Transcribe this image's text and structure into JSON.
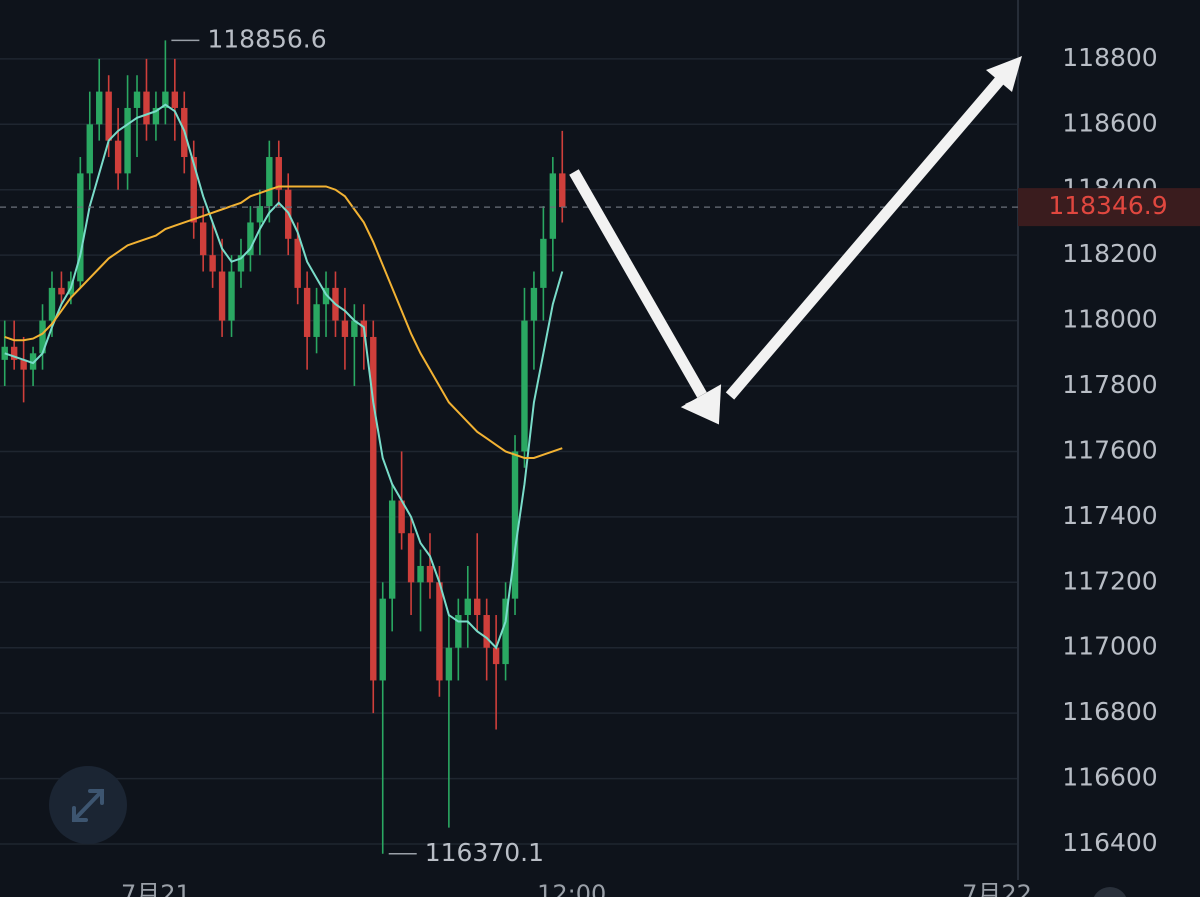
{
  "chart_data": {
    "type": "candlestick",
    "categories": [
      null,
      null,
      null,
      null,
      null,
      null,
      null,
      null,
      null,
      null,
      null,
      null,
      null,
      null,
      null,
      null,
      "7月21",
      null,
      null,
      null,
      null,
      null,
      null,
      null,
      null,
      null,
      null,
      null,
      null,
      null,
      null,
      null,
      null,
      null,
      null,
      null,
      null,
      null,
      null,
      null,
      null,
      null,
      null,
      null,
      null,
      null,
      null,
      null,
      null,
      null,
      null,
      null,
      null,
      null,
      null,
      null,
      null,
      null,
      null,
      null,
      "12:00",
      null,
      null,
      null,
      null,
      null,
      null,
      null,
      null,
      null,
      null,
      null,
      null,
      null,
      null,
      null,
      null,
      null,
      null,
      null,
      null,
      null,
      null,
      null,
      null,
      null,
      null,
      null,
      null,
      null,
      null,
      null,
      null,
      null,
      null,
      null,
      null,
      null,
      null,
      null,
      null,
      null,
      null,
      null,
      null,
      "7月22",
      null
    ],
    "open": [
      117880,
      117920,
      117880,
      117850,
      117900,
      118000,
      118100,
      118080,
      118120,
      118450,
      118600,
      118700,
      118550,
      118450,
      118650,
      118700,
      118600,
      118650,
      118700,
      118650,
      118500,
      118300,
      118200,
      118150,
      118000,
      118150,
      118200,
      118300,
      118350,
      118500,
      118400,
      118250,
      118100,
      117950,
      118050,
      118100,
      118000,
      117950,
      118000,
      117950,
      116900,
      117150,
      117450,
      117350,
      117200,
      117250,
      117200,
      116900,
      117000,
      117100,
      117150,
      117100,
      117000,
      116950,
      117150,
      117600,
      118000,
      118100,
      118250,
      118450,
      null,
      null,
      null,
      null,
      null,
      null,
      null,
      null,
      null,
      null,
      null,
      null,
      null,
      null,
      null,
      null,
      null,
      null,
      null,
      null,
      null,
      null,
      null,
      null,
      null,
      null,
      null,
      null,
      null,
      null,
      null,
      null,
      null,
      null,
      null,
      null,
      null,
      null,
      null,
      null,
      null,
      null,
      null,
      null,
      null,
      null,
      null
    ],
    "high": [
      118000,
      118000,
      117950,
      117920,
      118050,
      118150,
      118150,
      118150,
      118500,
      118700,
      118800,
      118750,
      118650,
      118750,
      118750,
      118800,
      118700,
      118856.6,
      118800,
      118700,
      118550,
      118350,
      118300,
      118250,
      118200,
      118250,
      118350,
      118400,
      118550,
      118550,
      118450,
      118300,
      118150,
      118100,
      118150,
      118150,
      118100,
      118050,
      118050,
      118000,
      117200,
      117500,
      117600,
      117400,
      117300,
      117350,
      117250,
      117100,
      117150,
      117250,
      117350,
      117150,
      117100,
      117200,
      117650,
      118100,
      118150,
      118350,
      118500,
      118580,
      null,
      null,
      null,
      null,
      null,
      null,
      null,
      null,
      null,
      null,
      null,
      null,
      null,
      null,
      null,
      null,
      null,
      null,
      null,
      null,
      null,
      null,
      null,
      null,
      null,
      null,
      null,
      null,
      null,
      null,
      null,
      null,
      null,
      null,
      null,
      null,
      null,
      null,
      null,
      null,
      null,
      null,
      null,
      null,
      null,
      null,
      null
    ],
    "low": [
      117800,
      117850,
      117750,
      117800,
      117850,
      117950,
      118050,
      118050,
      118100,
      118400,
      118550,
      118500,
      118400,
      118400,
      118500,
      118550,
      118550,
      118600,
      118550,
      118450,
      118250,
      118150,
      118100,
      117950,
      117950,
      118100,
      118150,
      118200,
      118300,
      118350,
      118200,
      118050,
      117850,
      117900,
      117950,
      117950,
      117850,
      117800,
      117850,
      116800,
      116370.1,
      117050,
      117300,
      117100,
      117050,
      117150,
      116850,
      116450,
      116900,
      117000,
      117050,
      116900,
      116750,
      116900,
      117100,
      117550,
      117850,
      118000,
      118150,
      118300,
      null,
      null,
      null,
      null,
      null,
      null,
      null,
      null,
      null,
      null,
      null,
      null,
      null,
      null,
      null,
      null,
      null,
      null,
      null,
      null,
      null,
      null,
      null,
      null,
      null,
      null,
      null,
      null,
      null,
      null,
      null,
      null,
      null,
      null,
      null,
      null,
      null,
      null,
      null,
      null,
      null,
      null,
      null,
      null,
      null,
      null,
      null
    ],
    "close": [
      117920,
      117880,
      117850,
      117900,
      118000,
      118100,
      118080,
      118120,
      118450,
      118600,
      118700,
      118550,
      118450,
      118650,
      118700,
      118600,
      118650,
      118700,
      118650,
      118500,
      118300,
      118200,
      118150,
      118000,
      118150,
      118200,
      118300,
      118350,
      118500,
      118400,
      118250,
      118100,
      117950,
      118050,
      118100,
      118000,
      117950,
      118000,
      117950,
      116900,
      117150,
      117450,
      117350,
      117200,
      117250,
      117200,
      116900,
      117000,
      117100,
      117150,
      117100,
      117000,
      116950,
      117150,
      117600,
      118000,
      118100,
      118250,
      118450,
      118346.9,
      null,
      null,
      null,
      null,
      null,
      null,
      null,
      null,
      null,
      null,
      null,
      null,
      null,
      null,
      null,
      null,
      null,
      null,
      null,
      null,
      null,
      null,
      null,
      null,
      null,
      null,
      null,
      null,
      null,
      null,
      null,
      null,
      null,
      null,
      null,
      null,
      null,
      null,
      null,
      null,
      null,
      null,
      null,
      null,
      null,
      null,
      null
    ],
    "up_color": "#2aa862",
    "down_color": "#cf3f3b",
    "lines": [
      {
        "color": "#79dcc9",
        "values": [
          117900,
          117890,
          117880,
          117870,
          117900,
          117980,
          118050,
          118100,
          118200,
          118350,
          118450,
          118550,
          118580,
          118600,
          118620,
          118630,
          118640,
          118660,
          118640,
          118580,
          118480,
          118380,
          118300,
          118220,
          118180,
          118190,
          118220,
          118280,
          118330,
          118360,
          118330,
          118270,
          118180,
          118130,
          118080,
          118050,
          118030,
          118000,
          117980,
          117750,
          117580,
          117500,
          117450,
          117400,
          117320,
          117280,
          117200,
          117100,
          117080,
          117080,
          117050,
          117030,
          117000,
          117080,
          117300,
          117500,
          117750,
          117900,
          118050,
          118150,
          null,
          null,
          null,
          null,
          null,
          null,
          null,
          null,
          null,
          null,
          null,
          null,
          null,
          null,
          null,
          null,
          null,
          null,
          null,
          null,
          null,
          null,
          null,
          null,
          null,
          null,
          null,
          null,
          null,
          null,
          null,
          null,
          null,
          null,
          null,
          null,
          null,
          null,
          null,
          null,
          null,
          null,
          null,
          null,
          null,
          null,
          null
        ]
      },
      {
        "color": "#f2b233",
        "values": [
          117950,
          117940,
          117940,
          117945,
          117960,
          117990,
          118030,
          118070,
          118100,
          118130,
          118160,
          118190,
          118210,
          118230,
          118240,
          118250,
          118260,
          118280,
          118290,
          118300,
          118310,
          118320,
          118330,
          118340,
          118350,
          118360,
          118380,
          118390,
          118400,
          118410,
          118410,
          118410,
          118410,
          118410,
          118410,
          118400,
          118380,
          118340,
          118300,
          118240,
          118170,
          118100,
          118030,
          117960,
          117900,
          117850,
          117800,
          117750,
          117720,
          117690,
          117660,
          117640,
          117620,
          117600,
          117590,
          117580,
          117580,
          117590,
          117600,
          117610,
          null,
          null,
          null,
          null,
          null,
          null,
          null,
          null,
          null,
          null,
          null,
          null,
          null,
          null,
          null,
          null,
          null,
          null,
          null,
          null,
          null,
          null,
          null,
          null,
          null,
          null,
          null,
          null,
          null,
          null,
          null,
          null,
          null,
          null,
          null,
          null,
          null,
          null,
          null,
          null,
          null,
          null,
          null,
          null,
          null,
          null,
          null
        ]
      }
    ],
    "ylim": [
      116290,
      118980
    ],
    "yticks": [
      116400,
      116600,
      116800,
      117000,
      117200,
      117400,
      117600,
      117800,
      118000,
      118200,
      118400,
      118600,
      118800
    ],
    "grid": true,
    "price_tag_color": "#e0473f"
  }
}
